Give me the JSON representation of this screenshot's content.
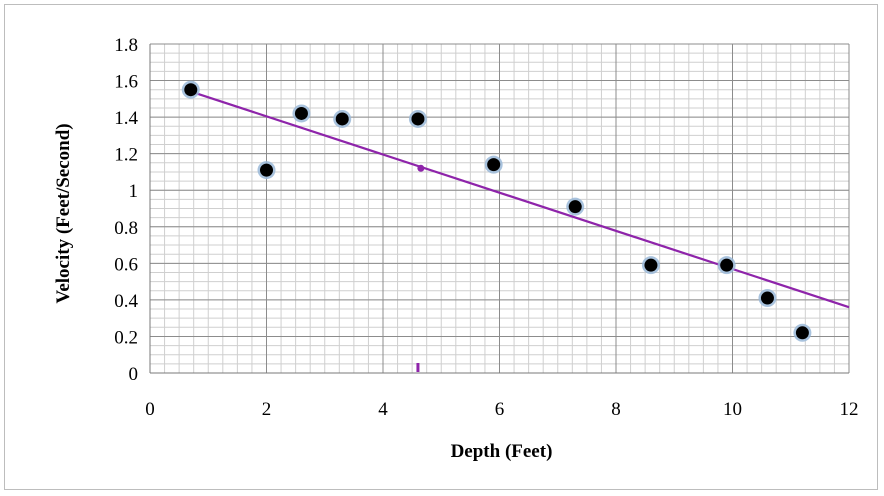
{
  "chart_data": {
    "type": "scatter",
    "title": "",
    "xlabel": "Depth (Feet)",
    "ylabel": "Velocity (Feet/Second)",
    "xlim": [
      0,
      12
    ],
    "ylim": [
      0,
      1.8
    ],
    "x_ticks": [
      0,
      2,
      4,
      6,
      8,
      10,
      12
    ],
    "y_ticks": [
      0,
      0.2,
      0.4,
      0.6,
      0.8,
      1,
      1.2,
      1.4,
      1.6,
      1.8
    ],
    "x_tick_labels": [
      "0",
      "2",
      "4",
      "6",
      "8",
      "10",
      "12"
    ],
    "y_tick_labels": [
      "0",
      "0.2",
      "0.4",
      "0.6",
      "0.8",
      "1",
      "1.2",
      "1.4",
      "1.6",
      "1.8"
    ],
    "grid": true,
    "legend": "none",
    "series": [
      {
        "points": [
          {
            "x": 0.7,
            "y": 1.55
          },
          {
            "x": 2.0,
            "y": 1.11
          },
          {
            "x": 2.6,
            "y": 1.42
          },
          {
            "x": 3.3,
            "y": 1.39
          },
          {
            "x": 4.6,
            "y": 1.39
          },
          {
            "x": 5.9,
            "y": 1.14
          },
          {
            "x": 7.3,
            "y": 0.91
          },
          {
            "x": 8.6,
            "y": 0.59
          },
          {
            "x": 9.9,
            "y": 0.59
          },
          {
            "x": 10.6,
            "y": 0.41
          },
          {
            "x": 11.2,
            "y": 0.22
          }
        ],
        "marker_color": "#000000",
        "marker_edge_color": "#9ab8d8"
      }
    ],
    "trendline": {
      "type": "linear",
      "start": {
        "x": 0.7,
        "y": 1.54
      },
      "end": {
        "x": 12,
        "y": 0.36
      },
      "color": "#8e24aa"
    },
    "annotations": [
      {
        "type": "dot",
        "x": 4.65,
        "y": 1.12,
        "color": "#8e24aa"
      },
      {
        "type": "tick-mark",
        "x": 4.6,
        "y": 0.02,
        "color": "#8e24aa"
      }
    ],
    "colors": {
      "grid_major": "#8c8c8c",
      "grid_minor": "#cfcfcf",
      "frame": "#bdbdbd"
    }
  }
}
